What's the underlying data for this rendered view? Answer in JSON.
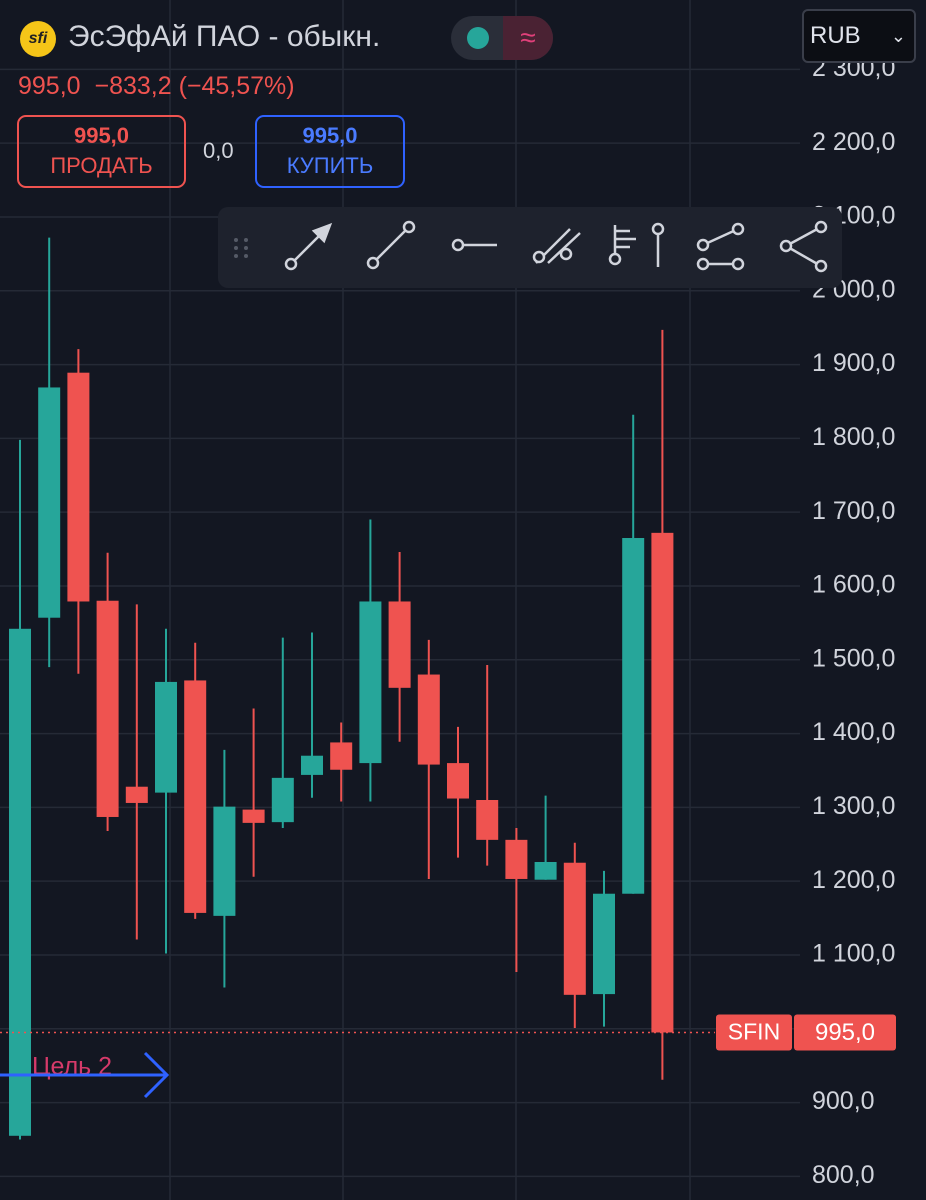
{
  "header": {
    "logo": "sfi",
    "title": "ЭсЭфАй ПАО - обыкн.",
    "price": "995,0",
    "change": "−833,2 (−45,57%)",
    "sell_price": "995,0",
    "sell_label": "ПРОДАТЬ",
    "spread": "0,0",
    "buy_price": "995,0",
    "buy_label": "КУПИТЬ",
    "currency": "RUB"
  },
  "chart_data": {
    "type": "candlestick",
    "open": [
      855,
      1557,
      1889,
      1580,
      1328,
      1320,
      1472,
      1153,
      1297,
      1280,
      1344,
      1388,
      1360,
      1579,
      1480,
      1360,
      1310,
      1256,
      1202,
      1225,
      1047,
      1183,
      1672
    ],
    "high": [
      1798,
      2072,
      1921,
      1645,
      1575,
      1542,
      1523,
      1378,
      1434,
      1530,
      1537,
      1415,
      1690,
      1646,
      1527,
      1409,
      1493,
      1272,
      1316,
      1252,
      1214,
      1832,
      1947
    ],
    "low": [
      850,
      1490,
      1481,
      1268,
      1121,
      1102,
      1149,
      1056,
      1206,
      1272,
      1313,
      1308,
      1308,
      1389,
      1203,
      1232,
      1221,
      1077,
      1202,
      1001,
      1003,
      1183,
      931
    ],
    "close": [
      1542,
      1869,
      1579,
      1287,
      1306,
      1470,
      1157,
      1301,
      1279,
      1340,
      1370,
      1351,
      1579,
      1462,
      1358,
      1312,
      1256,
      1203,
      1226,
      1046,
      1183,
      1665,
      995
    ],
    "up_color": "#26a69a",
    "down_color": "#ef5350",
    "ylim": [
      768,
      2394
    ],
    "yticks": [
      {
        "value": 800,
        "label": "800,0"
      },
      {
        "value": 900,
        "label": "900,0"
      },
      {
        "value": 1000,
        "label": "1 000,0"
      },
      {
        "value": 1100,
        "label": "1 100,0"
      },
      {
        "value": 1200,
        "label": "1 200,0"
      },
      {
        "value": 1300,
        "label": "1 300,0"
      },
      {
        "value": 1400,
        "label": "1 400,0"
      },
      {
        "value": 1500,
        "label": "1 500,0"
      },
      {
        "value": 1600,
        "label": "1 600,0"
      },
      {
        "value": 1700,
        "label": "1 700,0"
      },
      {
        "value": 1800,
        "label": "1 800,0"
      },
      {
        "value": 1900,
        "label": "1 900,0"
      },
      {
        "value": 2000,
        "label": "2 000,0"
      },
      {
        "value": 2100,
        "label": "2 100,0"
      },
      {
        "value": 2200,
        "label": "2 200,0"
      },
      {
        "value": 2300,
        "label": "2 300,0"
      }
    ],
    "grid": true,
    "last_ticker": "SFIN",
    "last_label": "995,0",
    "annotation": "Цель 2"
  }
}
